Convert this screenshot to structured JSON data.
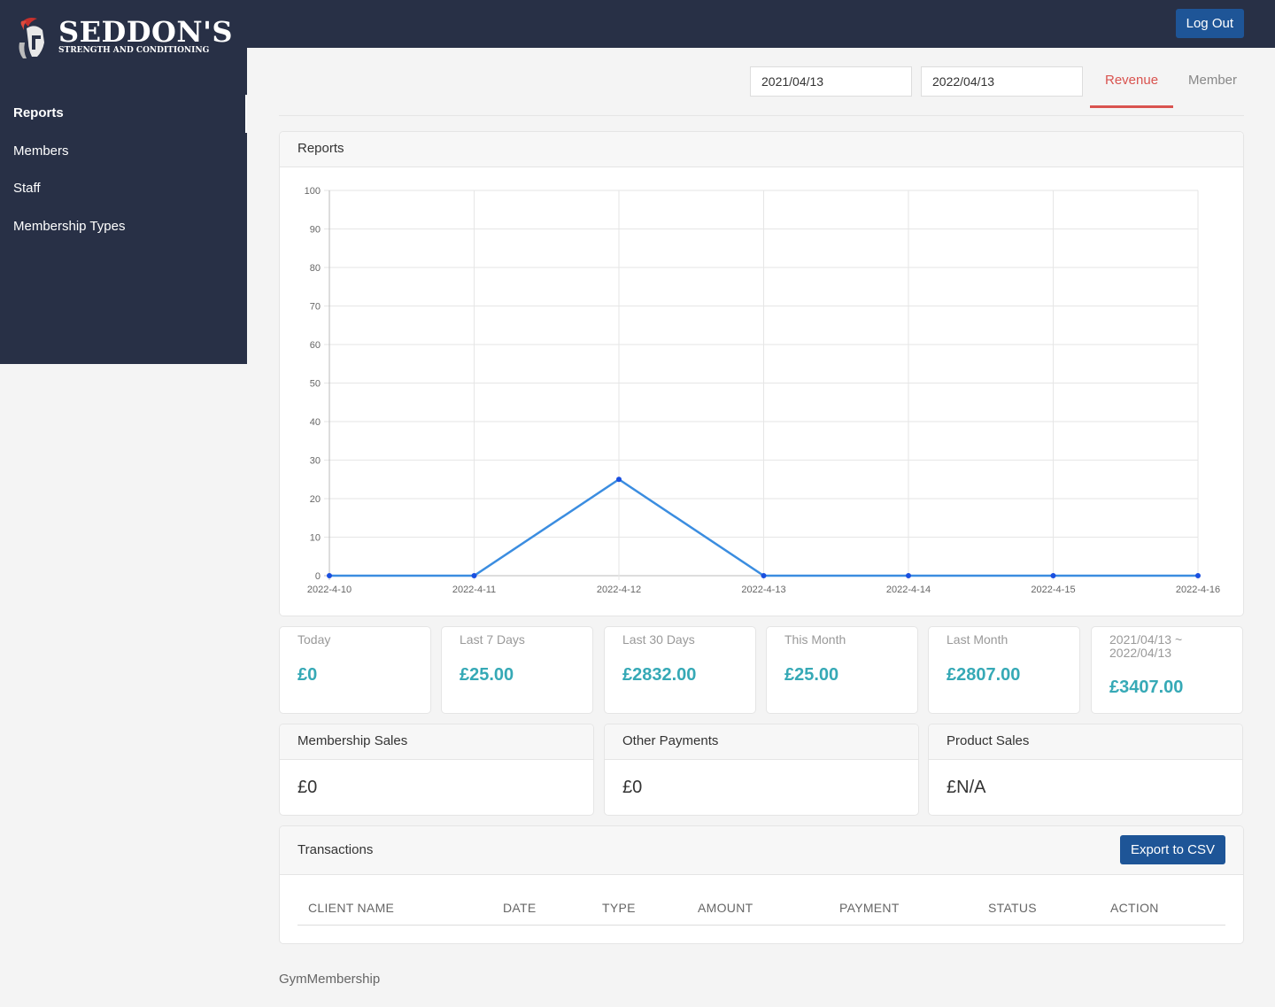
{
  "brand": {
    "title": "SEDDON'S",
    "subtitle": "STRENGTH AND CONDITIONING"
  },
  "sidebar": {
    "items": [
      {
        "label": "Reports",
        "active": true
      },
      {
        "label": "Members"
      },
      {
        "label": "Staff"
      },
      {
        "label": "Membership Types"
      }
    ]
  },
  "topbar": {
    "logout_label": "Log Out"
  },
  "filters": {
    "start_date": "2021/04/13",
    "end_date": "2022/04/13"
  },
  "tabs": [
    {
      "label": "Revenue",
      "active": true
    },
    {
      "label": "Member"
    }
  ],
  "report_card": {
    "title": "Reports"
  },
  "chart_data": {
    "type": "line",
    "categories": [
      "2022-4-10",
      "2022-4-11",
      "2022-4-12",
      "2022-4-13",
      "2022-4-14",
      "2022-4-15",
      "2022-4-16"
    ],
    "values": [
      0,
      0,
      25,
      0,
      0,
      0,
      0
    ],
    "ylim": [
      0,
      100
    ],
    "yticks": [
      0,
      10,
      20,
      30,
      40,
      50,
      60,
      70,
      80,
      90,
      100
    ],
    "grid": true,
    "line_color": "#3b8de0",
    "point_color": "#1a4fe0"
  },
  "stats": [
    {
      "label": "Today",
      "value": "£0"
    },
    {
      "label": "Last 7 Days",
      "value": "£25.00"
    },
    {
      "label": "Last 30 Days",
      "value": "£2832.00"
    },
    {
      "label": "This Month",
      "value": "£25.00"
    },
    {
      "label": "Last Month",
      "value": "£2807.00"
    },
    {
      "label": "2021/04/13 ~ 2022/04/13",
      "value": "£3407.00"
    }
  ],
  "sales": [
    {
      "title": "Membership Sales",
      "value": "£0"
    },
    {
      "title": "Other Payments",
      "value": "£0"
    },
    {
      "title": "Product Sales",
      "value": "£N/A"
    }
  ],
  "transactions": {
    "title": "Transactions",
    "export_label": "Export to CSV",
    "columns": [
      "CLIENT NAME",
      "DATE",
      "TYPE",
      "AMOUNT",
      "PAYMENT",
      "STATUS",
      "ACTION"
    ]
  },
  "footer": {
    "text": "GymMembership"
  },
  "colors": {
    "sidebar": "#283046",
    "accent": "#36a9b6",
    "primary_button": "#1e5597",
    "active_tab": "#d9534f"
  }
}
